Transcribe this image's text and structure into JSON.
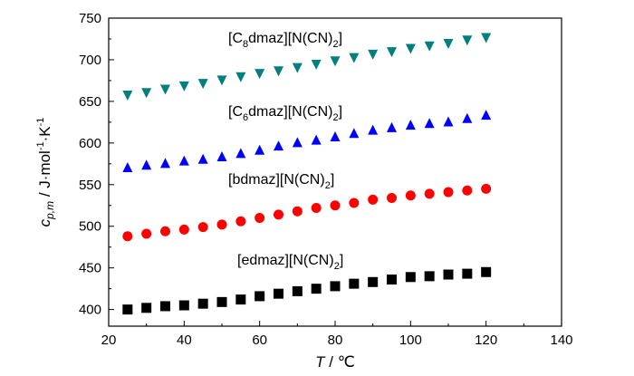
{
  "chart_data": {
    "type": "scatter",
    "title": "",
    "xlabel": {
      "symbol": "T",
      "unit": " / ℃"
    },
    "ylabel": {
      "symbol": "c",
      "subscript": "p,m",
      "unit_main": " / J·mol",
      "exp1": "-1",
      "mid": "·K",
      "exp2": "-1"
    },
    "xlim": [
      20,
      140
    ],
    "ylim": [
      380,
      750
    ],
    "xticks": [
      "20",
      "40",
      "60",
      "80",
      "100",
      "120",
      "140"
    ],
    "yticks": [
      "400",
      "450",
      "500",
      "550",
      "600",
      "650",
      "700",
      "750"
    ],
    "x": [
      25,
      30,
      35,
      40,
      45,
      50,
      55,
      60,
      65,
      70,
      75,
      80,
      85,
      90,
      95,
      100,
      105,
      110,
      115,
      120
    ],
    "series": [
      {
        "name": "[edmaz][N(CN)2]",
        "label_parts": {
          "pre": "[edmaz][N(CN)",
          "sub": "2",
          "post": "]"
        },
        "marker": "square",
        "color": "#000000",
        "values": [
          400,
          402,
          404,
          405,
          407,
          409,
          412,
          416,
          419,
          422,
          425,
          428,
          431,
          433,
          436,
          439,
          440,
          442,
          443,
          445
        ]
      },
      {
        "name": "[bdmaz][N(CN)2]",
        "label_parts": {
          "pre": "[bdmaz][N(CN)",
          "sub": "2",
          "post": "]"
        },
        "marker": "circle",
        "color": "#ff0000",
        "values": [
          488,
          491,
          494,
          496,
          499,
          502,
          506,
          510,
          514,
          518,
          522,
          525,
          528,
          532,
          534,
          537,
          539,
          541,
          543,
          545
        ]
      },
      {
        "name": "[C6dmaz][N(CN)2]",
        "label_parts": {
          "pre": "[C",
          "sub1": "6",
          "mid": "dmaz][N(CN)",
          "sub": "2",
          "post": "]"
        },
        "marker": "triangle-up",
        "color": "#0000ff",
        "values": [
          571,
          574,
          576,
          579,
          581,
          584,
          588,
          592,
          597,
          601,
          604,
          608,
          612,
          616,
          619,
          622,
          624,
          626,
          630,
          634
        ]
      },
      {
        "name": "[C8dmaz][N(CN)2]",
        "label_parts": {
          "pre": "[C",
          "sub1": "8",
          "mid": "dmaz][N(CN)",
          "sub": "2",
          "post": "]"
        },
        "marker": "triangle-down",
        "color": "#007f7f",
        "values": [
          657,
          660,
          664,
          668,
          671,
          675,
          679,
          683,
          686,
          690,
          694,
          698,
          702,
          706,
          709,
          713,
          716,
          719,
          723,
          726
        ]
      }
    ]
  }
}
